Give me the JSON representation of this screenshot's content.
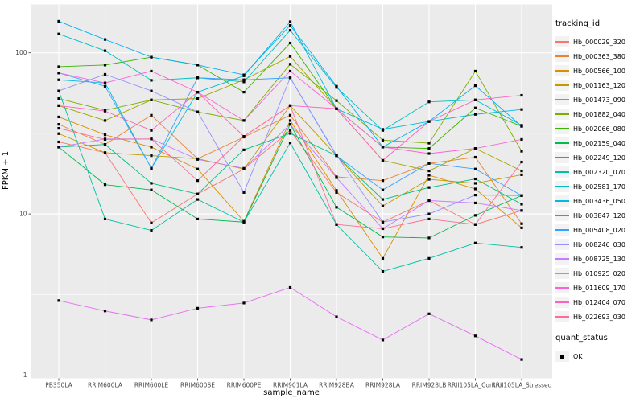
{
  "figure": {
    "background": "#FFFFFF",
    "panel_background": "#EBEBEB",
    "grid_color": "#FFFFFF",
    "point_color": "#000000",
    "tick_label_color": "#4D4D4D",
    "axis_title_color": "#000000",
    "legend_key_background": "#F2F2F2"
  },
  "axes": {
    "xlabel": "sample_name",
    "ylabel": "FPKM + 1"
  },
  "legend": {
    "tracking_title": "tracking_id",
    "quant_title": "quant_status",
    "quant_value": "OK"
  },
  "chart_data": {
    "type": "line",
    "title": "",
    "xlabel": "sample_name",
    "ylabel": "FPKM + 1",
    "y_scale": "log10",
    "y_ticks": [
      1,
      10,
      100
    ],
    "y_minor_ticks": [
      3.1623,
      31.623
    ],
    "ylim": [
      1,
      200
    ],
    "grid": true,
    "legend_position": "right",
    "point_shape": "filled-square",
    "categories": [
      "PB350LA",
      "RRIM600LA",
      "RRIM600LE",
      "RRIM600SE",
      "RRIM600PE",
      "RRIM901LA",
      "RRIM928BA",
      "RRIM928LA",
      "RRIM928LB",
      "RRII105LA_Control",
      "RRII105LA_Stressed"
    ],
    "series": [
      {
        "name": "Hb_000029_320",
        "color": "#F8766D",
        "values": [
          28,
          24,
          8.8,
          13.3,
          19,
          33,
          13.6,
          8.9,
          12.1,
          8.6,
          10.5
        ]
      },
      {
        "name": "Hb_000363_380",
        "color": "#EA8331",
        "values": [
          36,
          27,
          41,
          22,
          30,
          41,
          17,
          16.1,
          20.6,
          22.5,
          8.7
        ]
      },
      {
        "name": "Hb_000566_100",
        "color": "#D89000",
        "values": [
          40,
          31,
          26,
          19,
          9,
          38,
          14,
          5.3,
          17.4,
          14.3,
          8.2
        ]
      },
      {
        "name": "Hb_001163_120",
        "color": "#C09B00",
        "values": [
          31.5,
          24,
          23,
          22,
          19,
          47,
          23,
          11.2,
          16.4,
          15.5,
          17.5
        ]
      },
      {
        "name": "Hb_001473_090",
        "color": "#A3A500",
        "values": [
          47,
          38,
          51,
          52,
          68,
          95,
          45,
          21.5,
          18.5,
          25.5,
          18.5
        ]
      },
      {
        "name": "Hb_001882_040",
        "color": "#7CAE00",
        "values": [
          52,
          44,
          51,
          43,
          38,
          85,
          50.5,
          28.7,
          27.5,
          77,
          24.5
        ]
      },
      {
        "name": "Hb_002066_080",
        "color": "#39B600",
        "values": [
          82,
          84,
          94,
          84,
          57,
          115,
          45,
          26,
          25.5,
          45.5,
          35
        ]
      },
      {
        "name": "Hb_002159_040",
        "color": "#00BB4E",
        "values": [
          26,
          15.2,
          14.1,
          9.3,
          8.9,
          36,
          11,
          7.2,
          7.1,
          9.8,
          13
        ]
      },
      {
        "name": "Hb_002249_120",
        "color": "#00BF7D",
        "values": [
          26,
          27,
          15.5,
          13.3,
          25,
          31.6,
          23,
          12.3,
          14.6,
          16.5,
          11.5
        ]
      },
      {
        "name": "Hb_002320_070",
        "color": "#00C1A3",
        "values": [
          58,
          9.3,
          7.9,
          12.3,
          8.9,
          27.6,
          8.6,
          4.4,
          5.3,
          6.6,
          6.2
        ]
      },
      {
        "name": "Hb_002581_170",
        "color": "#00BFC4",
        "values": [
          131,
          103,
          67.5,
          70,
          66,
          138,
          61,
          33,
          49.6,
          51,
          35.5
        ]
      },
      {
        "name": "Hb_003436_050",
        "color": "#00BAE0",
        "values": [
          68,
          65,
          19.2,
          57,
          72,
          156,
          45,
          33.5,
          37.5,
          41.5,
          44.5
        ]
      },
      {
        "name": "Hb_003847_120",
        "color": "#00B0F6",
        "values": [
          157,
          121,
          94,
          84,
          73,
          148,
          62,
          26,
          37.5,
          62.5,
          35
        ]
      },
      {
        "name": "Hb_005408_020",
        "color": "#35A2FF",
        "values": [
          75,
          62,
          19.2,
          70,
          68,
          70,
          23,
          14.1,
          20.6,
          19,
          13
        ]
      },
      {
        "name": "Hb_008246_030",
        "color": "#9590FF",
        "values": [
          58,
          73.5,
          58,
          43,
          13.6,
          70,
          23.2,
          8.9,
          10,
          13.1,
          13
        ]
      },
      {
        "name": "Hb_008725_130",
        "color": "#C77CFF",
        "values": [
          26,
          29.2,
          29.2,
          21.8,
          19.2,
          36,
          16.8,
          8.1,
          12.1,
          11.7,
          10.5
        ]
      },
      {
        "name": "Hb_010925_020",
        "color": "#E76BF3",
        "values": [
          2.9,
          2.5,
          2.2,
          2.6,
          2.8,
          3.5,
          2.3,
          1.65,
          2.4,
          1.75,
          1.25
        ]
      },
      {
        "name": "Hb_011609_170",
        "color": "#FA62DB",
        "values": [
          75,
          65,
          77,
          57,
          38,
          77,
          45,
          26,
          23.7,
          25.5,
          29
        ]
      },
      {
        "name": "Hb_012404_070",
        "color": "#FF62BC",
        "values": [
          47,
          43.5,
          33,
          57,
          30.3,
          47,
          45,
          21.5,
          37.5,
          51,
          54.5
        ]
      },
      {
        "name": "Hb_022693_030",
        "color": "#FF6A98",
        "values": [
          34,
          29,
          29.2,
          16.1,
          30.3,
          47,
          8.6,
          8.1,
          9.3,
          8.6,
          21
        ]
      }
    ]
  }
}
